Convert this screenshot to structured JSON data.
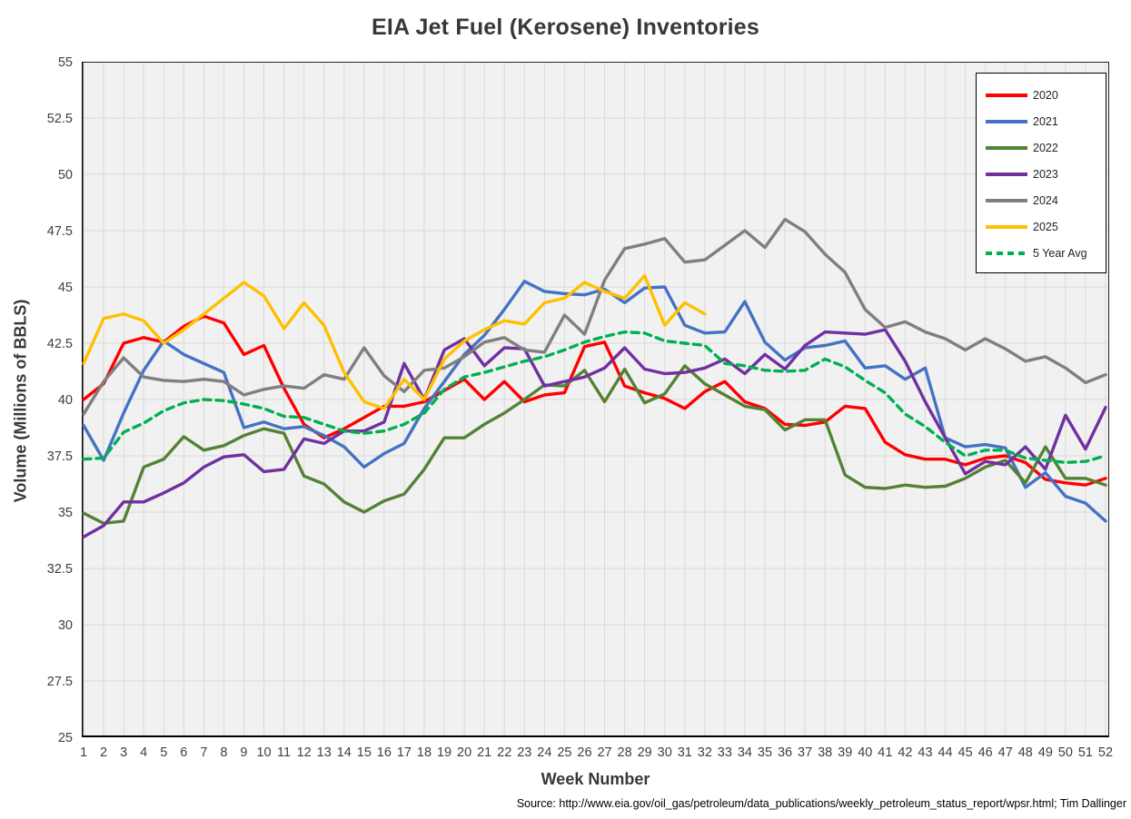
{
  "title": "EIA Jet Fuel (Kerosene) Inventories",
  "source_note": "Source: http://www.eia.gov/oil_gas/petroleum/data_publications/weekly_petroleum_status_report/wpsr.html; Tim Dallinger",
  "chart_data": {
    "type": "line",
    "title": "EIA Jet Fuel (Kerosene) Inventories",
    "xlabel": "Week Number",
    "ylabel": "Volume (Millions of BBLS)",
    "ylim": [
      25,
      55
    ],
    "grid": true,
    "legend_position": "top-right",
    "y_ticks": [
      "55",
      "52.5",
      "50",
      "47.5",
      "45",
      "42.5",
      "40",
      "37.5",
      "35",
      "32.5",
      "30",
      "27.5",
      "25"
    ],
    "x": [
      1,
      2,
      3,
      4,
      5,
      6,
      7,
      8,
      9,
      10,
      11,
      12,
      13,
      14,
      15,
      16,
      17,
      18,
      19,
      20,
      21,
      22,
      23,
      24,
      25,
      26,
      27,
      28,
      29,
      30,
      31,
      32,
      33,
      34,
      35,
      36,
      37,
      38,
      39,
      40,
      41,
      42,
      43,
      44,
      45,
      46,
      47,
      48,
      49,
      50,
      51,
      52
    ],
    "series": [
      {
        "name": "2020",
        "color": "#FF0000",
        "dash": false,
        "values": [
          40.0,
          40.7,
          42.5,
          42.75,
          42.55,
          43.25,
          43.7,
          43.4,
          42.0,
          42.4,
          40.5,
          38.9,
          38.3,
          38.7,
          39.2,
          39.7,
          39.7,
          39.9,
          40.4,
          40.9,
          40.0,
          40.8,
          39.9,
          40.2,
          40.3,
          42.35,
          42.55,
          40.6,
          40.3,
          40.05,
          39.6,
          40.35,
          40.8,
          39.9,
          39.6,
          38.9,
          38.85,
          39.0,
          39.7,
          39.6,
          38.1,
          37.55,
          37.35,
          37.35,
          37.1,
          37.4,
          37.5,
          37.2,
          36.45,
          36.3,
          36.2,
          36.5
        ]
      },
      {
        "name": "2021",
        "color": "#4472C4",
        "dash": false,
        "values": [
          38.85,
          37.3,
          39.4,
          41.3,
          42.6,
          42.0,
          41.6,
          41.2,
          38.75,
          39.0,
          38.7,
          38.8,
          38.4,
          37.9,
          37.0,
          37.6,
          38.05,
          39.6,
          40.8,
          42.0,
          42.85,
          44.0,
          45.25,
          44.8,
          44.7,
          44.65,
          44.9,
          44.3,
          44.95,
          45.0,
          43.3,
          42.95,
          43.0,
          44.35,
          42.55,
          41.75,
          42.3,
          42.4,
          42.6,
          41.4,
          41.5,
          40.9,
          41.4,
          38.3,
          37.9,
          38.0,
          37.85,
          36.1,
          36.75,
          35.7,
          35.4,
          34.6
        ]
      },
      {
        "name": "2022",
        "color": "#548235",
        "dash": false,
        "values": [
          34.95,
          34.5,
          34.6,
          37.0,
          37.35,
          38.35,
          37.75,
          37.95,
          38.4,
          38.7,
          38.5,
          36.6,
          36.25,
          35.45,
          35.0,
          35.5,
          35.8,
          36.9,
          38.3,
          38.3,
          38.9,
          39.4,
          40.0,
          40.65,
          40.6,
          41.3,
          39.9,
          41.35,
          39.85,
          40.25,
          41.5,
          40.7,
          40.2,
          39.7,
          39.55,
          38.65,
          39.1,
          39.1,
          36.65,
          36.1,
          36.05,
          36.2,
          36.1,
          36.15,
          36.5,
          37.0,
          37.3,
          36.3,
          37.9,
          36.5,
          36.5,
          36.2
        ]
      },
      {
        "name": "2023",
        "color": "#7030A0",
        "dash": false,
        "values": [
          33.9,
          34.4,
          35.45,
          35.45,
          35.85,
          36.3,
          37.0,
          37.45,
          37.55,
          36.8,
          36.9,
          38.25,
          38.05,
          38.6,
          38.6,
          39.0,
          41.6,
          40.0,
          42.2,
          42.7,
          41.5,
          42.3,
          42.25,
          40.6,
          40.8,
          41.0,
          41.4,
          42.3,
          41.35,
          41.15,
          41.2,
          41.4,
          41.8,
          41.15,
          42.0,
          41.35,
          42.4,
          43.0,
          42.95,
          42.9,
          43.1,
          41.7,
          39.9,
          38.3,
          36.7,
          37.25,
          37.1,
          37.9,
          36.9,
          39.3,
          37.8,
          39.65
        ]
      },
      {
        "name": "2024",
        "color": "#7F7F7F",
        "dash": false,
        "values": [
          39.35,
          40.8,
          41.85,
          41.0,
          40.85,
          40.8,
          40.9,
          40.8,
          40.2,
          40.45,
          40.6,
          40.5,
          41.1,
          40.9,
          42.3,
          41.05,
          40.35,
          41.3,
          41.4,
          41.9,
          42.55,
          42.75,
          42.2,
          42.1,
          43.75,
          42.9,
          45.3,
          46.7,
          46.9,
          47.15,
          46.1,
          46.2,
          46.85,
          47.5,
          46.75,
          48.0,
          47.45,
          46.45,
          45.65,
          44.0,
          43.2,
          43.45,
          43.0,
          42.7,
          42.2,
          42.7,
          42.25,
          41.7,
          41.9,
          41.4,
          40.75,
          41.1
        ]
      },
      {
        "name": "2025",
        "color": "#FFC000",
        "dash": false,
        "values": [
          41.6,
          43.6,
          43.8,
          43.5,
          42.5,
          43.1,
          43.8,
          44.5,
          45.2,
          44.6,
          43.15,
          44.3,
          43.3,
          41.2,
          39.9,
          39.6,
          40.9,
          40.0,
          41.8,
          42.6,
          43.1,
          43.5,
          43.35,
          44.3,
          44.5,
          45.2,
          44.8,
          44.5,
          45.5,
          43.3,
          44.3,
          43.8
        ]
      },
      {
        "name": "5 Year Avg",
        "color": "#00B050",
        "dash": true,
        "values": [
          37.35,
          37.4,
          38.55,
          38.95,
          39.5,
          39.85,
          40.0,
          39.95,
          39.8,
          39.6,
          39.25,
          39.2,
          38.9,
          38.6,
          38.5,
          38.6,
          38.9,
          39.4,
          40.45,
          41.0,
          41.2,
          41.45,
          41.7,
          41.9,
          42.2,
          42.55,
          42.8,
          43.0,
          42.95,
          42.6,
          42.5,
          42.4,
          41.6,
          41.5,
          41.3,
          41.25,
          41.3,
          41.8,
          41.45,
          40.85,
          40.3,
          39.35,
          38.8,
          38.1,
          37.5,
          37.75,
          37.75,
          37.4,
          37.3,
          37.2,
          37.25,
          37.5
        ]
      }
    ]
  }
}
